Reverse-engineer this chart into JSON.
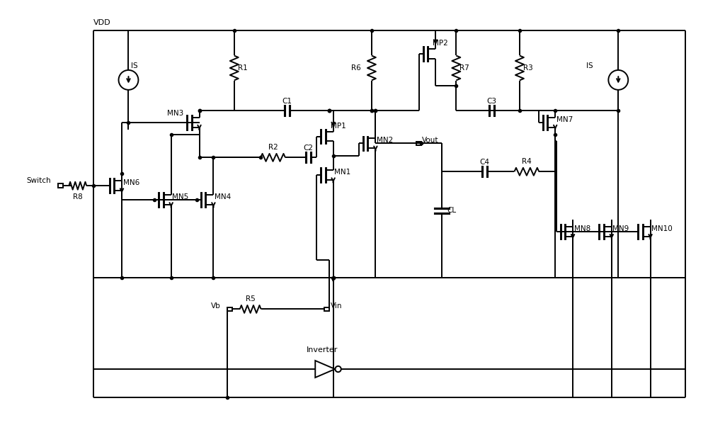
{
  "figsize": [
    10.0,
    6.07
  ],
  "dpi": 100,
  "bg_color": "white",
  "lc": "black",
  "lw": 1.4,
  "font": "DejaVu Sans",
  "components": {
    "VDD_label": "VDD",
    "IS_label": "IS",
    "labels": [
      "MN3",
      "MN6",
      "MN5",
      "MN4",
      "MP1",
      "MN1",
      "MN2",
      "MP2",
      "MN7",
      "MN8",
      "MN9",
      "MN10",
      "R1",
      "R2",
      "R3",
      "R4",
      "R5",
      "R6",
      "R7",
      "R8",
      "C1",
      "C2",
      "C3",
      "C4",
      "CL",
      "Switch",
      "Vb",
      "Vin",
      "Vout",
      "Inverter"
    ]
  }
}
